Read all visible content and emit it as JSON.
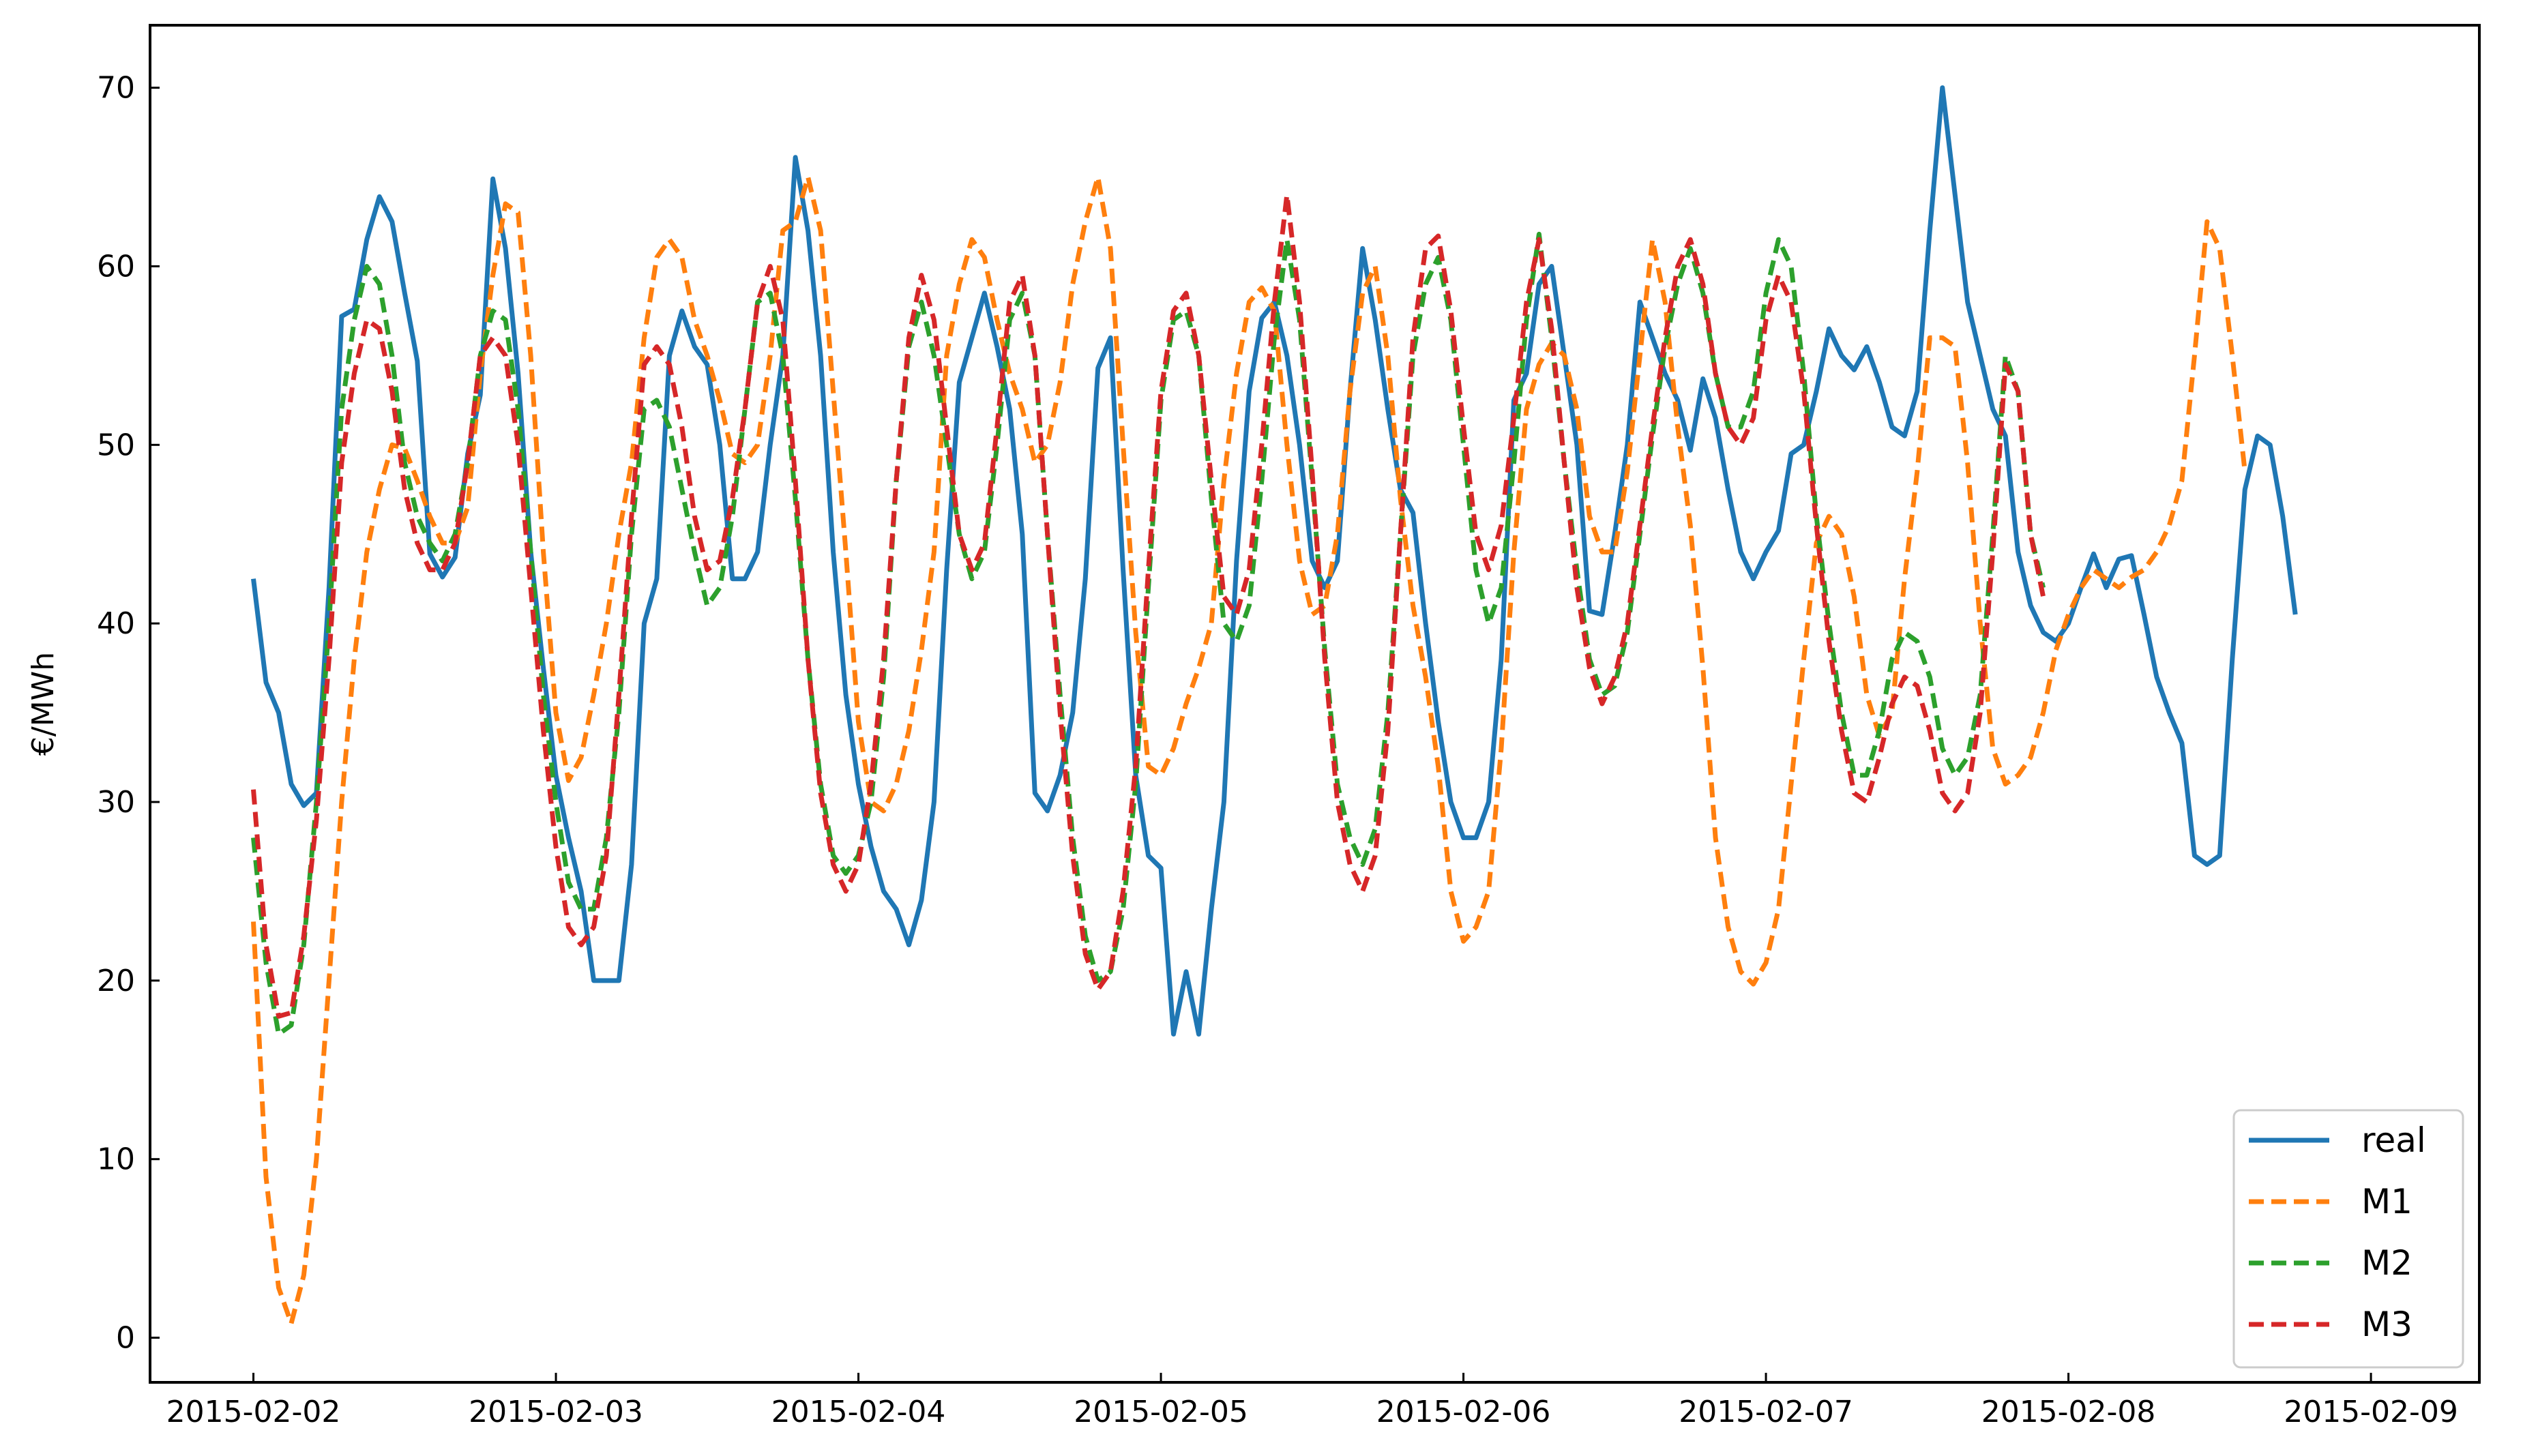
{
  "chart_data": {
    "type": "line",
    "title": "",
    "xlabel": "",
    "ylabel": "€/MWh",
    "x_ticks": [
      "2015-02-02",
      "2015-02-03",
      "2015-02-04",
      "2015-02-05",
      "2015-02-06",
      "2015-02-07",
      "2015-02-08",
      "2015-02-09"
    ],
    "y_ticks": [
      0,
      10,
      20,
      30,
      40,
      50,
      60,
      70
    ],
    "ylim": [
      -2.5,
      73.5
    ],
    "xlim": [
      "2015-02-01 15:48",
      "2015-02-09 08:36"
    ],
    "x_start": "2015-02-02 00:00",
    "x_step_hours": 1,
    "grid": false,
    "legend_position": "lower-right",
    "series": [
      {
        "name": "real",
        "color": "#1f77b4",
        "dashed": false,
        "values": [
          42.5,
          36.7,
          35.0,
          31.0,
          29.8,
          30.5,
          42.0,
          57.2,
          57.6,
          61.5,
          63.9,
          62.5,
          58.5,
          54.7,
          43.9,
          42.6,
          43.7,
          49.5,
          52.8,
          64.9,
          61.0,
          54.0,
          44.0,
          37.5,
          31.5,
          28.0,
          25.0,
          20.0,
          20.0,
          20.0,
          26.5,
          40.0,
          42.5,
          55.0,
          57.5,
          55.5,
          54.5,
          50.0,
          42.5,
          42.5,
          44.0,
          50.0,
          55.0,
          66.1,
          62.0,
          55.0,
          44.0,
          36.0,
          31.0,
          27.5,
          25.0,
          24.0,
          22.0,
          24.5,
          30.0,
          43.0,
          53.5,
          56.0,
          58.5,
          55.5,
          52.0,
          45.0,
          30.5,
          29.5,
          31.5,
          35.0,
          42.5,
          54.3,
          56.0,
          43.0,
          31.5,
          27.0,
          26.3,
          17.0,
          20.5,
          17.0,
          24.0,
          30.0,
          43.5,
          53.0,
          57.1,
          58.0,
          55.0,
          50.0,
          43.5,
          42.0,
          43.5,
          53.0,
          61.0,
          57.0,
          52.0,
          47.5,
          46.2,
          40.0,
          34.5,
          30.0,
          28.0,
          28.0,
          30.0,
          38.0,
          52.5,
          54.0,
          59.0,
          60.0,
          55.0,
          50.0,
          40.7,
          40.5,
          45.0,
          50.0,
          58.0,
          56.0,
          54.0,
          52.5,
          49.7,
          53.7,
          51.5,
          47.5,
          44.0,
          42.5,
          44.0,
          45.2,
          49.5,
          50.0,
          53.0,
          56.5,
          55.0,
          54.2,
          55.5,
          53.5,
          51.0,
          50.5,
          53.0,
          62.0,
          70.0,
          64.0,
          58.0,
          55.0,
          52.0,
          50.5,
          44.0,
          41.0,
          39.5,
          39.0,
          40.0,
          42.0,
          43.9,
          42.0,
          43.6,
          43.8,
          40.5,
          37.0,
          35.0,
          33.3,
          27.0,
          26.5,
          27.0,
          38.0,
          47.5,
          50.5,
          50.0,
          46.0,
          40.5
        ]
      },
      {
        "name": "M1",
        "color": "#ff7f0e",
        "dashed": true,
        "values": [
          23.3,
          9.0,
          2.8,
          0.8,
          3.5,
          10.0,
          20.0,
          30.0,
          38.0,
          44.0,
          47.5,
          50.0,
          49.8,
          48.0,
          46.0,
          44.5,
          44.5,
          46.5,
          54.0,
          59.5,
          63.5,
          63.0,
          55.0,
          44.0,
          35.0,
          31.2,
          32.5,
          36.0,
          40.0,
          45.0,
          49.0,
          56.0,
          60.5,
          61.5,
          60.5,
          57.0,
          55.0,
          52.5,
          49.5,
          49.0,
          50.0,
          55.0,
          62.0,
          62.5,
          65.0,
          62.0,
          53.0,
          44.0,
          34.5,
          30.0,
          29.5,
          31.0,
          34.0,
          38.5,
          44.0,
          55.0,
          59.0,
          61.5,
          60.5,
          57.0,
          54.0,
          52.0,
          49.0,
          50.0,
          53.5,
          59.0,
          62.5,
          65.0,
          61.0,
          50.0,
          39.5,
          32.0,
          31.5,
          33.0,
          35.5,
          37.5,
          40.0,
          48.0,
          54.0,
          58.0,
          58.8,
          57.5,
          50.0,
          43.5,
          40.5,
          41.0,
          45.0,
          53.0,
          58.5,
          60.0,
          55.0,
          47.0,
          41.0,
          37.0,
          32.0,
          25.0,
          22.2,
          23.0,
          25.0,
          33.0,
          44.0,
          52.0,
          54.5,
          55.7,
          55.0,
          52.0,
          46.0,
          44.0,
          44.0,
          48.5,
          55.0,
          61.5,
          58.0,
          51.0,
          45.5,
          37.5,
          28.0,
          23.0,
          20.5,
          19.8,
          21.0,
          24.0,
          31.0,
          38.0,
          44.5,
          46.0,
          45.0,
          41.5,
          36.0,
          33.7,
          35.0,
          42.5,
          48.5,
          56.0,
          56.0,
          55.5,
          49.0,
          40.0,
          33.0,
          31.0,
          31.5,
          32.5,
          35.0,
          38.5,
          40.5,
          42.0,
          43.0,
          42.5,
          42.0,
          42.6,
          43.0,
          44.0,
          45.5,
          48.0,
          55.0,
          62.5,
          61.0,
          55.0,
          48.5
        ]
      },
      {
        "name": "M2",
        "color": "#2ca02c",
        "dashed": true,
        "values": [
          28.0,
          21.0,
          17.0,
          17.5,
          22.0,
          30.0,
          40.0,
          52.0,
          57.0,
          60.0,
          59.0,
          55.0,
          49.0,
          46.0,
          44.5,
          43.5,
          45.0,
          49.0,
          55.0,
          57.5,
          57.0,
          52.0,
          44.0,
          36.0,
          30.0,
          25.5,
          24.0,
          24.0,
          28.0,
          35.0,
          45.0,
          52.0,
          52.5,
          51.0,
          47.5,
          44.0,
          41.0,
          42.0,
          46.0,
          52.0,
          58.0,
          58.5,
          55.0,
          47.0,
          38.0,
          31.0,
          27.0,
          26.0,
          27.0,
          30.0,
          37.0,
          48.0,
          55.5,
          58.0,
          55.0,
          50.0,
          45.0,
          42.5,
          44.0,
          50.0,
          57.0,
          58.5,
          55.0,
          45.0,
          36.0,
          28.0,
          22.5,
          20.0,
          20.5,
          24.0,
          31.0,
          42.0,
          52.5,
          57.0,
          57.5,
          55.0,
          47.0,
          40.0,
          39.0,
          41.0,
          48.0,
          56.0,
          61.5,
          57.0,
          48.0,
          38.5,
          31.0,
          28.0,
          26.5,
          28.5,
          35.0,
          45.0,
          55.0,
          59.0,
          60.5,
          57.0,
          50.0,
          43.0,
          40.0,
          42.0,
          49.0,
          57.0,
          61.8,
          56.0,
          49.0,
          43.0,
          38.0,
          36.0,
          36.5,
          39.5,
          45.0,
          50.5,
          55.5,
          59.0,
          61.0,
          58.5,
          54.0,
          51.0,
          51.0,
          53.0,
          58.5,
          61.5,
          60.0,
          54.0,
          46.0,
          40.0,
          35.0,
          31.5,
          31.5,
          34.0,
          38.0,
          39.5,
          39.0,
          37.0,
          33.0,
          31.5,
          32.5,
          36.0,
          45.0,
          55.0,
          53.0,
          45.0,
          42.0
        ]
      },
      {
        "name": "M3",
        "color": "#d62728",
        "dashed": true,
        "values": [
          30.7,
          22.0,
          18.0,
          18.2,
          22.5,
          29.0,
          38.0,
          49.0,
          54.0,
          57.0,
          56.5,
          53.0,
          47.5,
          44.5,
          43.0,
          43.0,
          44.5,
          49.0,
          55.0,
          56.0,
          55.0,
          50.0,
          42.0,
          34.0,
          27.5,
          23.0,
          22.0,
          23.0,
          27.0,
          36.0,
          46.0,
          54.5,
          55.5,
          54.5,
          51.0,
          46.0,
          43.0,
          43.5,
          47.0,
          52.0,
          58.0,
          60.0,
          57.0,
          48.0,
          38.0,
          30.5,
          26.5,
          25.0,
          26.5,
          31.0,
          38.0,
          48.0,
          56.0,
          59.5,
          57.0,
          51.0,
          45.0,
          43.0,
          44.5,
          51.0,
          58.0,
          59.5,
          55.0,
          45.0,
          35.0,
          27.0,
          21.5,
          19.5,
          20.5,
          25.0,
          32.0,
          43.0,
          53.0,
          57.5,
          58.5,
          55.0,
          48.0,
          41.5,
          40.5,
          43.0,
          50.0,
          58.0,
          64.0,
          58.0,
          48.5,
          38.0,
          30.0,
          26.5,
          25.0,
          27.0,
          34.0,
          45.0,
          56.0,
          61.0,
          61.7,
          57.5,
          51.0,
          45.0,
          43.0,
          45.5,
          51.5,
          58.0,
          61.5,
          56.5,
          49.0,
          42.0,
          37.5,
          35.5,
          37.0,
          40.0,
          45.5,
          51.0,
          56.0,
          60.0,
          61.5,
          59.0,
          54.0,
          51.0,
          50.0,
          51.5,
          57.0,
          59.5,
          58.0,
          53.0,
          45.5,
          39.0,
          34.0,
          30.5,
          30.0,
          32.5,
          35.5,
          37.0,
          36.5,
          34.0,
          30.5,
          29.5,
          30.5,
          35.0,
          44.0,
          54.5,
          53.0,
          45.0,
          41.5
        ]
      }
    ]
  }
}
